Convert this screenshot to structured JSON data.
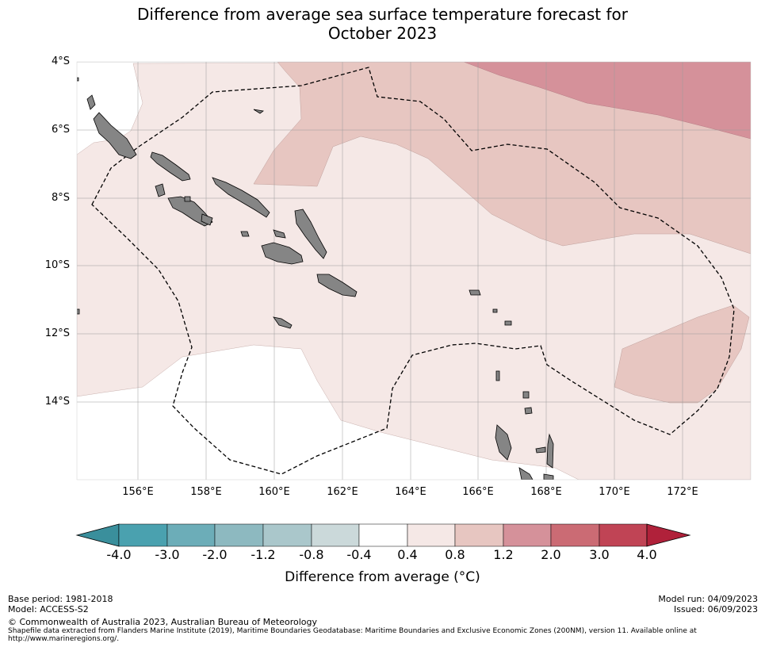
{
  "title_line1": "Difference from average sea surface temperature forecast for",
  "title_line2": "October 2023",
  "lat_labels": [
    "4°S",
    "6°S",
    "8°S",
    "10°S",
    "12°S",
    "14°S"
  ],
  "lon_labels": [
    "156°E",
    "158°E",
    "160°E",
    "162°E",
    "164°E",
    "166°E",
    "168°E",
    "170°E",
    "172°E"
  ],
  "colorbar": {
    "ticks": [
      "-4.0",
      "-3.0",
      "-2.0",
      "-1.2",
      "-0.8",
      "-0.4",
      "0.4",
      "0.8",
      "1.2",
      "2.0",
      "3.0",
      "4.0"
    ],
    "colors": [
      "#3a8f9c",
      "#4aa1af",
      "#6cadb8",
      "#8db9c0",
      "#aac7cb",
      "#cbd9da",
      "#ffffff",
      "#f5e8e6",
      "#e7c6c1",
      "#d5919a",
      "#cb6b74",
      "#c04455",
      "#b0213a"
    ],
    "label": "Difference from average (°C)"
  },
  "legend_colors": {
    "land": "#858585",
    "band_0_4_to_0_8": "#f5e8e6",
    "band_0_8_to_1_2": "#e7c6c1",
    "band_1_2_to_2_0": "#d5919a"
  },
  "footer": {
    "base_period": "Base period: 1981-2018",
    "model": "Model: ACCESS-S2",
    "model_run": "Model run: 04/09/2023",
    "issued": "Issued: 06/09/2023",
    "copyright": "© Commonwealth of Australia 2023, Australian Bureau of Meteorology",
    "shapefile_line1": "Shapefile data extracted from Flanders Marine Institute (2019), Maritime Boundaries Geodatabase: Maritime Boundaries and Exclusive Economic Zones (200NM), version 11. Available online at",
    "shapefile_line2": "http://www.marineregions.org/."
  }
}
